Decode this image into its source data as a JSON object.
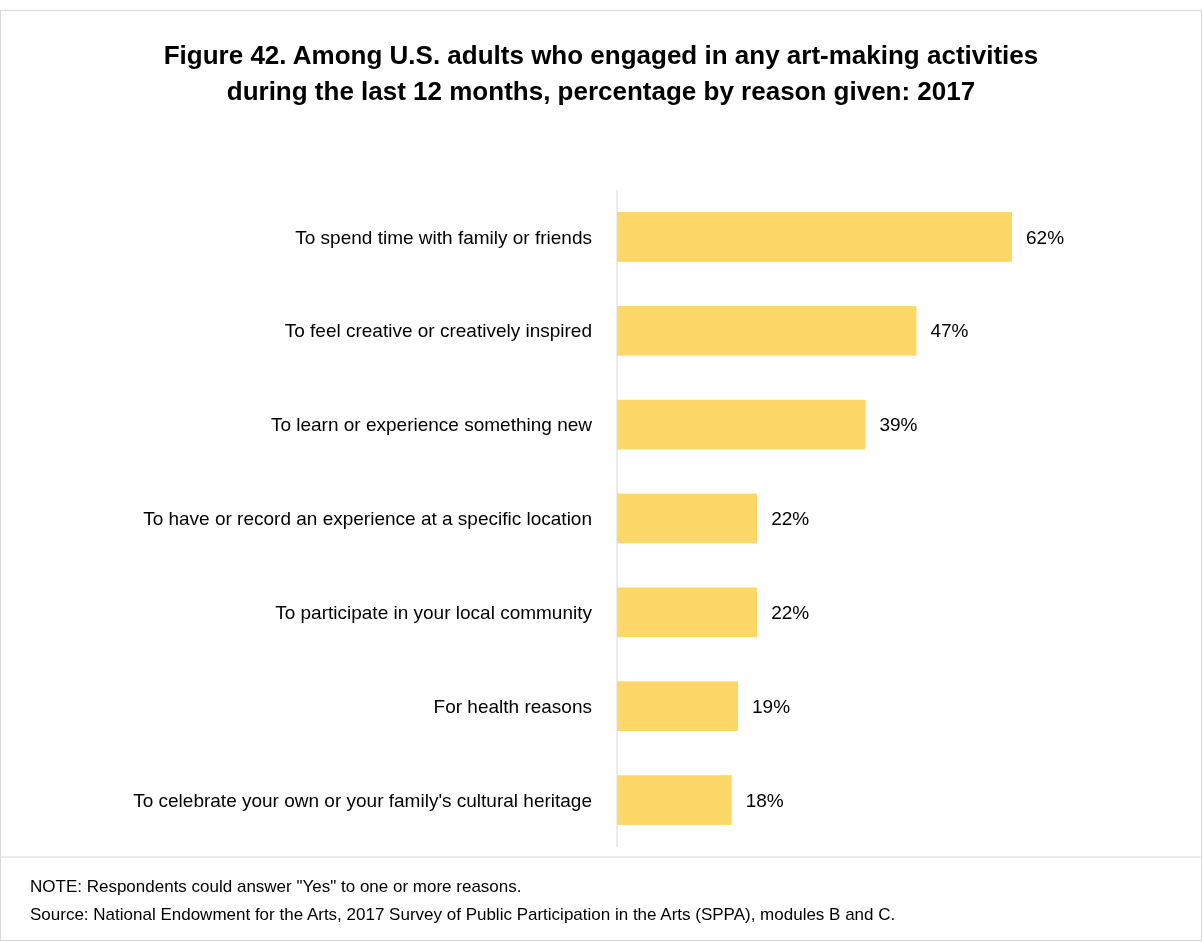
{
  "chart_data": {
    "type": "bar",
    "orientation": "horizontal",
    "title": "Figure 42. Among U.S. adults who engaged in any art-making activities during the last 12 months, percentage by reason given: 2017",
    "categories": [
      "To spend time with family or friends",
      "To feel creative or creatively inspired",
      "To learn or experience something new",
      "To have or record an experience at a specific location",
      "To participate in your local community",
      "For health reasons",
      "To celebrate your own or your family's cultural heritage"
    ],
    "values": [
      62,
      47,
      39,
      22,
      22,
      19,
      18
    ],
    "value_labels": [
      "62%",
      "47%",
      "39%",
      "22%",
      "22%",
      "19%",
      "18%"
    ],
    "color": "#fdd868",
    "annotations": [
      "NOTE: Respondents could answer \"Yes\" to one or more reasons.",
      "Source: National Endowment for the Arts, 2017 Survey of Public Participation in the Arts (SPPA), modules B and C."
    ]
  }
}
